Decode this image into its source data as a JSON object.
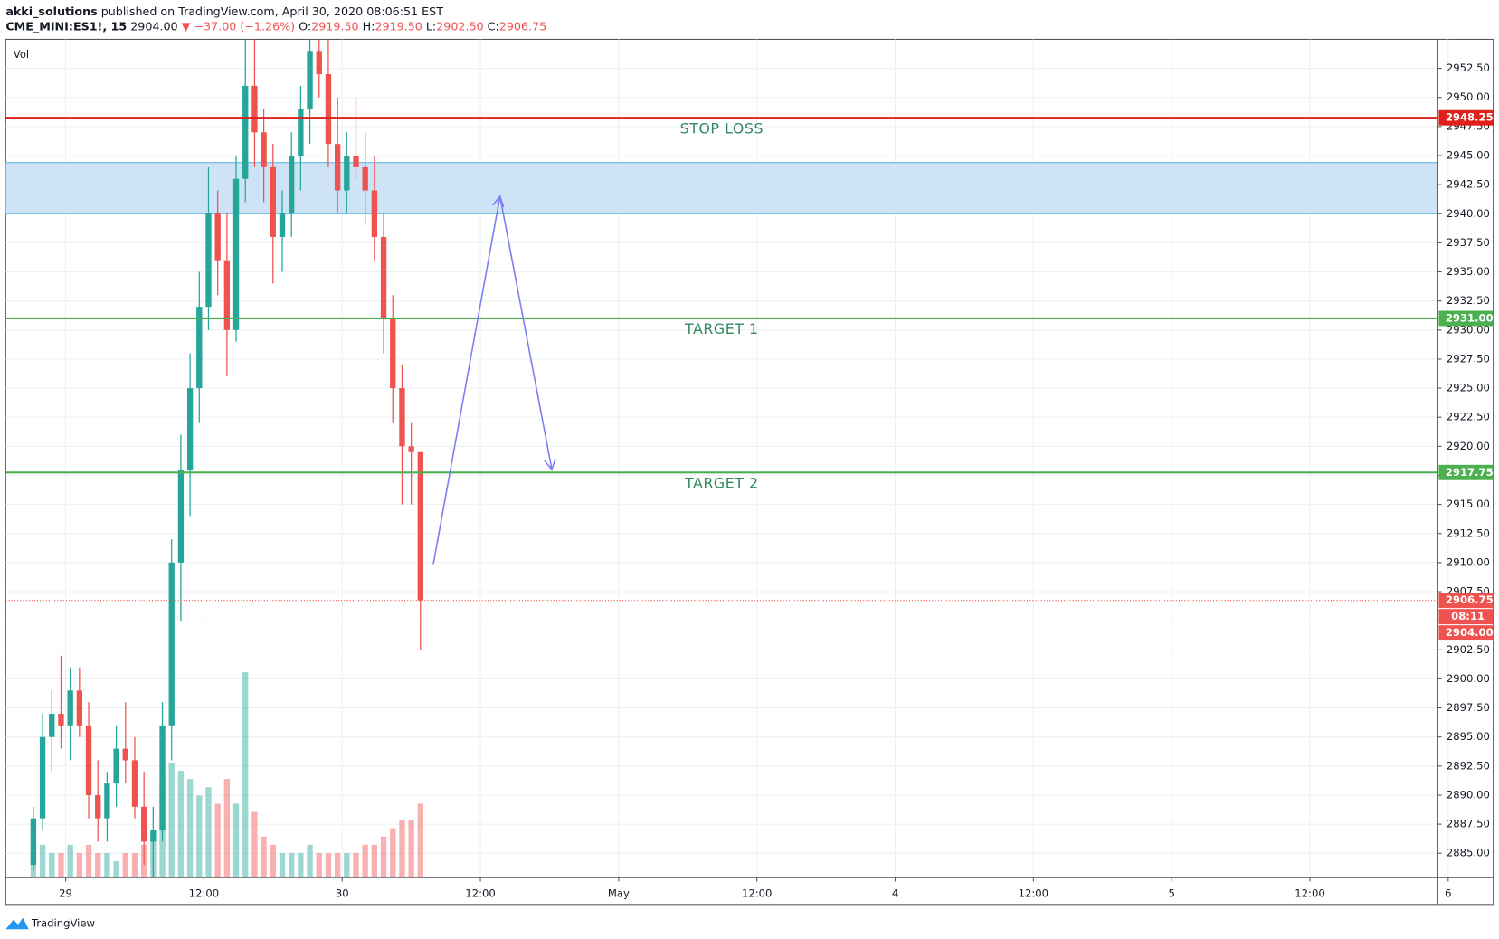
{
  "header": {
    "publisher": "akki_solutions",
    "published": "published on TradingView.com, April 30, 2020 08:06:51 EST",
    "symbol": "CME_MINI:ES1!, 15",
    "last": "2904.00",
    "change": "▼ −37.00 (−1.26%)",
    "open_label": "O:",
    "open": "2919.50",
    "high_label": "H:",
    "high": "2919.50",
    "low_label": "L:",
    "low": "2902.50",
    "close_label": "C:",
    "close": "2906.75"
  },
  "footer": {
    "brand": "TradingView"
  },
  "chart_data": {
    "type": "candlestick",
    "volume_label": "Vol",
    "xlim": [
      -5.2,
      119.1
    ],
    "xticks": [
      {
        "value": 0,
        "label": "29"
      },
      {
        "value": 12,
        "label": "12:00"
      },
      {
        "value": 24,
        "label": "30"
      },
      {
        "value": 36,
        "label": "12:00"
      },
      {
        "value": 48,
        "label": "May"
      },
      {
        "value": 60,
        "label": "12:00"
      },
      {
        "value": 72,
        "label": "4"
      },
      {
        "value": 84,
        "label": "12:00"
      },
      {
        "value": 96,
        "label": "5"
      },
      {
        "value": 108,
        "label": "12:00"
      },
      {
        "value": 120,
        "label": "6"
      }
    ],
    "ylim": [
      2882.9,
      2955.0
    ],
    "yticks": [
      {
        "value": 2885,
        "label": "2885.00"
      },
      {
        "value": 2887.5,
        "label": "2887.50"
      },
      {
        "value": 2890,
        "label": "2890.00"
      },
      {
        "value": 2892.5,
        "label": "2892.50"
      },
      {
        "value": 2895,
        "label": "2895.00"
      },
      {
        "value": 2897.5,
        "label": "2897.50"
      },
      {
        "value": 2900,
        "label": "2900.00"
      },
      {
        "value": 2902.5,
        "label": "2902.50"
      },
      {
        "value": 2905,
        "label": "2905.00"
      },
      {
        "value": 2907.5,
        "label": "2907.50"
      },
      {
        "value": 2910,
        "label": "2910.00"
      },
      {
        "value": 2912.5,
        "label": "2912.50"
      },
      {
        "value": 2915,
        "label": "2915.00"
      },
      {
        "value": 2917.5,
        "label": "2917.50"
      },
      {
        "value": 2920,
        "label": "2920.00"
      },
      {
        "value": 2922.5,
        "label": "2922.50"
      },
      {
        "value": 2925,
        "label": "2925.00"
      },
      {
        "value": 2927.5,
        "label": "2927.50"
      },
      {
        "value": 2930,
        "label": "2930.00"
      },
      {
        "value": 2932.5,
        "label": "2932.50"
      },
      {
        "value": 2935,
        "label": "2935.00"
      },
      {
        "value": 2937.5,
        "label": "2937.50"
      },
      {
        "value": 2940,
        "label": "2940.00"
      },
      {
        "value": 2942.5,
        "label": "2942.50"
      },
      {
        "value": 2945,
        "label": "2945.00"
      },
      {
        "value": 2947.5,
        "label": "2947.50"
      },
      {
        "value": 2950,
        "label": "2950.00"
      },
      {
        "value": 2952.5,
        "label": "2952.50"
      }
    ],
    "grid": true,
    "up_color": "#26a69a",
    "down_color": "#ef5350",
    "x": [
      -2.8,
      -2.0,
      -1.2,
      -0.4,
      0.4,
      1.2,
      2.0,
      2.8,
      3.6,
      4.4,
      5.2,
      6.0,
      6.8,
      7.6,
      8.4,
      9.2,
      10.0,
      10.8,
      11.6,
      12.4,
      13.2,
      14.0,
      14.8,
      15.6,
      16.4,
      17.2,
      18.0,
      18.8,
      19.6,
      20.4,
      21.2,
      22.0,
      22.8,
      23.6,
      24.4,
      25.2,
      26.0,
      26.8,
      27.6,
      28.4,
      29.2,
      30.0,
      30.8
    ],
    "open": [
      2884,
      2888,
      2895,
      2897,
      2896,
      2899,
      2896,
      2890,
      2888,
      2891,
      2894,
      2893,
      2889,
      2886,
      2887,
      2896,
      2910,
      2918,
      2925,
      2932,
      2940,
      2936,
      2930,
      2943,
      2951,
      2947,
      2944,
      2938,
      2940,
      2945,
      2949,
      2954,
      2952,
      2946,
      2942,
      2945,
      2944,
      2942,
      2938,
      2931,
      2925,
      2920,
      2919.5
    ],
    "high": [
      2889,
      2897,
      2899,
      2902,
      2901,
      2901,
      2898,
      2893,
      2892,
      2896,
      2898,
      2895,
      2892,
      2889,
      2898,
      2912,
      2921,
      2928,
      2935,
      2944,
      2942,
      2940,
      2945,
      2956,
      2955,
      2949,
      2946,
      2942,
      2947,
      2951,
      2955,
      2956,
      2955,
      2950,
      2947,
      2950,
      2947,
      2945,
      2940,
      2933,
      2927,
      2922,
      2919.5
    ],
    "low": [
      2883.5,
      2887,
      2892,
      2894,
      2893,
      2895,
      2888,
      2886,
      2886,
      2889,
      2891,
      2888,
      2884,
      2883,
      2886,
      2893,
      2905,
      2914,
      2922,
      2930,
      2933,
      2926,
      2929,
      2941,
      2944,
      2941,
      2934,
      2935,
      2938,
      2942,
      2946,
      2950,
      2944,
      2940,
      2940,
      2943,
      2939,
      2936,
      2928,
      2922,
      2915,
      2915,
      2902.5
    ],
    "close": [
      2888,
      2895,
      2897,
      2896,
      2899,
      2896,
      2890,
      2888,
      2891,
      2894,
      2893,
      2889,
      2886,
      2887,
      2896,
      2910,
      2918,
      2925,
      2932,
      2940,
      2936,
      2930,
      2943,
      2951,
      2947,
      2944,
      2938,
      2940,
      2945,
      2949,
      2954,
      2952,
      2946,
      2942,
      2945,
      2944,
      2942,
      2938,
      2931,
      2925,
      2920,
      2919.5,
      2906.75
    ],
    "volume": [
      3,
      4,
      3,
      3,
      4,
      3,
      4,
      3,
      3,
      2,
      3,
      3,
      4,
      5,
      12,
      14,
      13,
      12,
      10,
      11,
      9,
      12,
      9,
      25,
      8,
      5,
      4,
      3,
      3,
      3,
      4,
      3,
      3,
      3,
      3,
      3,
      4,
      4,
      5,
      6,
      7,
      7,
      9
    ],
    "zone": {
      "ylim": [
        2940.0,
        2944.4
      ],
      "color": "#cfe3f7"
    },
    "levels": [
      {
        "name": "STOP LOSS",
        "value": 2948.25,
        "label": "2948.25",
        "color": "#e0201b"
      },
      {
        "name": "TARGET 1",
        "value": 2931.0,
        "label": "2931.00",
        "color": "#4caf50"
      },
      {
        "name": "TARGET 2",
        "value": 2917.75,
        "label": "2917.75",
        "color": "#4caf50"
      }
    ],
    "current": {
      "value": 2906.75,
      "label": "2906.75",
      "countdown": "08:11",
      "color": "#ef5350"
    },
    "last": {
      "value": 2904.0,
      "label": "2904.00"
    },
    "arrow": {
      "x": [
        31.9,
        37.7,
        42.2
      ],
      "y": [
        2909.8,
        2941.5,
        2918.0
      ],
      "color": "#7b7ff0"
    }
  }
}
